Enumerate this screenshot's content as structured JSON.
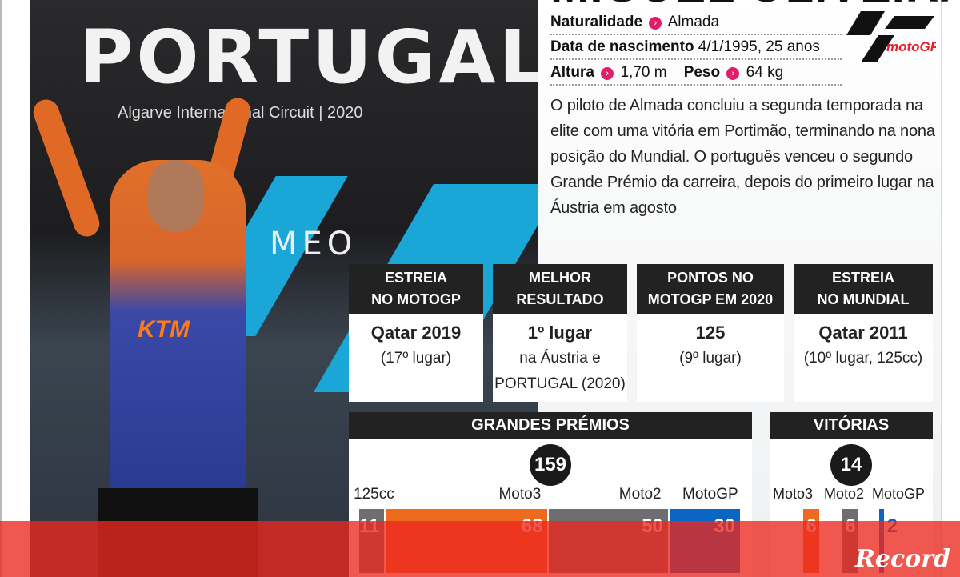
{
  "photo": {
    "backdrop_title": "PORTUGAL",
    "backdrop_subtitle": "Algarve International Circuit | 2020",
    "sponsor": "MEO",
    "suit_brand": "KTM"
  },
  "profile": {
    "name": "MIGUEL OLIVEIRA",
    "naturalidade_label": "Naturalidade",
    "naturalidade": "Almada",
    "nascimento_label": "Data de nascimento",
    "nascimento": "4/1/1995, 25 anos",
    "altura_label": "Altura",
    "altura": "1,70 m",
    "peso_label": "Peso",
    "peso": "64 kg",
    "logo_text": "motoGP",
    "bio": "O piloto de Almada concluiu a segunda temporada na elite com uma vitória em Portimão, terminando na nona posição do Mundial. O português venceu o segundo Grande Prémio da carreira, depois do primeiro lugar na Áustria em agosto"
  },
  "stats": [
    {
      "h1": "ESTREIA",
      "h2": "NO MOTOGP",
      "main": "Qatar 2019",
      "l1": "(17º lugar)",
      "l2": ""
    },
    {
      "h1": "MELHOR",
      "h2": "RESULTADO",
      "main": "1º lugar",
      "l1": "na Áustria e",
      "l2": "PORTUGAL (2020)"
    },
    {
      "h1": "PONTOS NO",
      "h2": "MOTOGP EM 2020",
      "main": "125",
      "l1": "(9º lugar)",
      "l2": ""
    },
    {
      "h1": "ESTREIA",
      "h2": "NO MUNDIAL",
      "main": "Qatar 2011",
      "l1": "(10º lugar, 125cc)",
      "l2": ""
    }
  ],
  "chart_data": [
    {
      "type": "bar",
      "title": "GRANDES PRÉMIOS",
      "total": "159",
      "categories": [
        "125cc",
        "Moto3",
        "Moto2",
        "MotoGP"
      ],
      "values": [
        11,
        68,
        50,
        30
      ],
      "colors": [
        "#6e6e72",
        "#ee6a1f",
        "#6e6e72",
        "#0a66c2"
      ]
    },
    {
      "type": "bar",
      "title": "VITÓRIAS",
      "total": "14",
      "categories": [
        "Moto3",
        "Moto2",
        "MotoGP"
      ],
      "values": [
        6,
        6,
        2
      ],
      "colors": [
        "#ee6a1f",
        "#6e6e72",
        "#0a66c2"
      ]
    }
  ],
  "brand": "Record",
  "colors": {
    "accent": "#e01e6e",
    "overlay": "#ec281e"
  }
}
